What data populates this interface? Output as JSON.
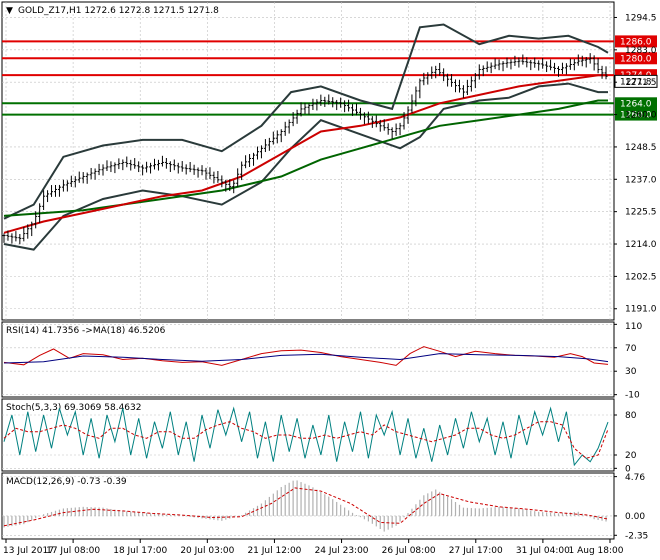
{
  "colors": {
    "resistance": "#e00000",
    "support": "#007000",
    "sma_fast": "#cc0000",
    "sma_slow": "#006400",
    "bands": "#2a3a3a",
    "candle": "#000000",
    "rsi": "#cc0000",
    "rsi_ma": "#000080",
    "stoch_main": "#008080",
    "stoch_signal": "#cc0000",
    "macd_hist": "#b0b0b0",
    "macd_signal": "#cc0000",
    "grid": "#c0c0c0"
  },
  "chart_data": [
    {
      "type": "line",
      "title": "GOLD_Z17,H1  1272.6 1272.8 1271.5 1271.8",
      "menu_arrow": "▼",
      "x_tick_labels": [
        "13 Jul 2017",
        "17 Jul 08:00",
        "18 Jul 17:00",
        "20 Jul 03:00",
        "21 Jul 12:00",
        "24 Jul 23:00",
        "26 Jul 08:00",
        "27 Jul 17:00",
        "31 Jul 04:00",
        "1 Aug 18:00"
      ],
      "y_ticks": [
        1191.0,
        1202.5,
        1214.0,
        1225.5,
        1237.0,
        1248.5,
        1260.0,
        1271.5,
        1283.0,
        1294.5
      ],
      "ylim": [
        1187,
        1300
      ],
      "current_price": 1271.8,
      "horizontal_levels": [
        {
          "value": 1286.0,
          "kind": "resistance",
          "label": "1286.0"
        },
        {
          "value": 1280.0,
          "kind": "resistance",
          "label": "1280.0"
        },
        {
          "value": 1274.0,
          "kind": "resistance",
          "label": "1274.0"
        },
        {
          "value": 1264.0,
          "kind": "support",
          "label": "1264.0"
        },
        {
          "value": 1260.0,
          "kind": "support",
          "label": "1260.0"
        }
      ],
      "close_path": [
        [
          0,
          1217
        ],
        [
          8,
          1216
        ],
        [
          15,
          1222
        ],
        [
          20,
          1231
        ],
        [
          30,
          1235
        ],
        [
          40,
          1238
        ],
        [
          50,
          1241
        ],
        [
          60,
          1243
        ],
        [
          70,
          1241
        ],
        [
          80,
          1243
        ],
        [
          90,
          1241
        ],
        [
          100,
          1240
        ],
        [
          110,
          1236
        ],
        [
          115,
          1234
        ],
        [
          120,
          1242
        ],
        [
          130,
          1248
        ],
        [
          140,
          1254
        ],
        [
          150,
          1262
        ],
        [
          160,
          1265
        ],
        [
          170,
          1264
        ],
        [
          180,
          1260
        ],
        [
          190,
          1256
        ],
        [
          196,
          1254
        ],
        [
          200,
          1256
        ],
        [
          205,
          1263
        ],
        [
          210,
          1272
        ],
        [
          218,
          1276
        ],
        [
          225,
          1272
        ],
        [
          232,
          1268
        ],
        [
          240,
          1276
        ],
        [
          250,
          1278
        ],
        [
          260,
          1279
        ],
        [
          270,
          1278
        ],
        [
          280,
          1276
        ],
        [
          290,
          1279
        ],
        [
          296,
          1280
        ],
        [
          300,
          1276
        ],
        [
          305,
          1273
        ]
      ],
      "sma_fast_path": [
        [
          0,
          1218
        ],
        [
          20,
          1222
        ],
        [
          40,
          1225
        ],
        [
          60,
          1228
        ],
        [
          80,
          1231
        ],
        [
          100,
          1233
        ],
        [
          120,
          1238
        ],
        [
          140,
          1246
        ],
        [
          160,
          1254
        ],
        [
          180,
          1256
        ],
        [
          200,
          1259
        ],
        [
          220,
          1264
        ],
        [
          240,
          1267
        ],
        [
          260,
          1270
        ],
        [
          280,
          1272
        ],
        [
          300,
          1274
        ],
        [
          305,
          1274
        ]
      ],
      "sma_slow_path": [
        [
          0,
          1224
        ],
        [
          40,
          1226
        ],
        [
          80,
          1230
        ],
        [
          110,
          1233
        ],
        [
          140,
          1238
        ],
        [
          160,
          1244
        ],
        [
          180,
          1248
        ],
        [
          200,
          1252
        ],
        [
          220,
          1256
        ],
        [
          240,
          1258
        ],
        [
          260,
          1260
        ],
        [
          280,
          1262
        ],
        [
          300,
          1265
        ],
        [
          305,
          1265
        ]
      ],
      "band_upper_path": [
        [
          0,
          1223
        ],
        [
          15,
          1228
        ],
        [
          30,
          1245
        ],
        [
          50,
          1249
        ],
        [
          70,
          1251
        ],
        [
          90,
          1251
        ],
        [
          110,
          1247
        ],
        [
          130,
          1256
        ],
        [
          145,
          1268
        ],
        [
          160,
          1270
        ],
        [
          180,
          1265
        ],
        [
          196,
          1262
        ],
        [
          210,
          1291
        ],
        [
          222,
          1292
        ],
        [
          240,
          1285
        ],
        [
          255,
          1288
        ],
        [
          270,
          1287
        ],
        [
          285,
          1288
        ],
        [
          300,
          1284
        ],
        [
          305,
          1282
        ]
      ],
      "band_lower_path": [
        [
          0,
          1214
        ],
        [
          15,
          1212
        ],
        [
          30,
          1224
        ],
        [
          50,
          1230
        ],
        [
          70,
          1233
        ],
        [
          90,
          1231
        ],
        [
          110,
          1228
        ],
        [
          130,
          1236
        ],
        [
          145,
          1248
        ],
        [
          160,
          1258
        ],
        [
          180,
          1253
        ],
        [
          200,
          1248
        ],
        [
          210,
          1252
        ],
        [
          222,
          1262
        ],
        [
          240,
          1265
        ],
        [
          255,
          1266
        ],
        [
          270,
          1270
        ],
        [
          285,
          1271
        ],
        [
          300,
          1268
        ],
        [
          305,
          1268
        ]
      ]
    },
    {
      "type": "line",
      "title": "RSI(14) 41.7356  ->MA(18) 46.5206",
      "y_ticks": [
        110,
        70,
        30,
        -10
      ],
      "ylim": [
        -14,
        114
      ],
      "rsi_path": [
        [
          0,
          45
        ],
        [
          10,
          41
        ],
        [
          18,
          57
        ],
        [
          25,
          68
        ],
        [
          33,
          52
        ],
        [
          40,
          60
        ],
        [
          50,
          58
        ],
        [
          60,
          50
        ],
        [
          70,
          52
        ],
        [
          80,
          48
        ],
        [
          90,
          45
        ],
        [
          100,
          46
        ],
        [
          110,
          40
        ],
        [
          120,
          50
        ],
        [
          130,
          60
        ],
        [
          140,
          65
        ],
        [
          150,
          66
        ],
        [
          160,
          62
        ],
        [
          170,
          55
        ],
        [
          180,
          50
        ],
        [
          190,
          45
        ],
        [
          198,
          40
        ],
        [
          205,
          60
        ],
        [
          212,
          72
        ],
        [
          220,
          64
        ],
        [
          228,
          55
        ],
        [
          238,
          64
        ],
        [
          248,
          60
        ],
        [
          258,
          57
        ],
        [
          268,
          56
        ],
        [
          278,
          54
        ],
        [
          286,
          60
        ],
        [
          292,
          55
        ],
        [
          298,
          44
        ],
        [
          305,
          41.7
        ]
      ],
      "ma_path": [
        [
          0,
          44
        ],
        [
          20,
          46
        ],
        [
          40,
          56
        ],
        [
          60,
          54
        ],
        [
          80,
          50
        ],
        [
          100,
          47
        ],
        [
          120,
          50
        ],
        [
          140,
          57
        ],
        [
          160,
          59
        ],
        [
          180,
          54
        ],
        [
          200,
          50
        ],
        [
          220,
          60
        ],
        [
          240,
          58
        ],
        [
          260,
          57
        ],
        [
          280,
          55
        ],
        [
          295,
          51
        ],
        [
          305,
          46.5
        ]
      ]
    },
    {
      "type": "line",
      "title": "Stoch(5,3,3) 69.3069 58.4632",
      "y_ticks": [
        80,
        20,
        0
      ],
      "ylim": [
        -4,
        104
      ],
      "main_path": [
        [
          0,
          40
        ],
        [
          4,
          80
        ],
        [
          8,
          20
        ],
        [
          12,
          85
        ],
        [
          16,
          25
        ],
        [
          20,
          80
        ],
        [
          24,
          30
        ],
        [
          28,
          90
        ],
        [
          32,
          50
        ],
        [
          36,
          85
        ],
        [
          40,
          20
        ],
        [
          44,
          75
        ],
        [
          48,
          15
        ],
        [
          52,
          80
        ],
        [
          56,
          40
        ],
        [
          60,
          90
        ],
        [
          64,
          20
        ],
        [
          68,
          75
        ],
        [
          72,
          15
        ],
        [
          76,
          70
        ],
        [
          80,
          30
        ],
        [
          84,
          85
        ],
        [
          88,
          20
        ],
        [
          92,
          70
        ],
        [
          96,
          10
        ],
        [
          100,
          80
        ],
        [
          104,
          30
        ],
        [
          108,
          88
        ],
        [
          112,
          50
        ],
        [
          116,
          90
        ],
        [
          120,
          40
        ],
        [
          124,
          85
        ],
        [
          128,
          15
        ],
        [
          132,
          70
        ],
        [
          136,
          10
        ],
        [
          140,
          80
        ],
        [
          144,
          25
        ],
        [
          148,
          75
        ],
        [
          152,
          15
        ],
        [
          156,
          65
        ],
        [
          160,
          20
        ],
        [
          164,
          80
        ],
        [
          168,
          10
        ],
        [
          172,
          70
        ],
        [
          176,
          25
        ],
        [
          180,
          85
        ],
        [
          184,
          15
        ],
        [
          188,
          80
        ],
        [
          192,
          50
        ],
        [
          196,
          85
        ],
        [
          200,
          20
        ],
        [
          204,
          75
        ],
        [
          208,
          15
        ],
        [
          212,
          60
        ],
        [
          216,
          10
        ],
        [
          220,
          65
        ],
        [
          224,
          20
        ],
        [
          228,
          75
        ],
        [
          232,
          30
        ],
        [
          236,
          85
        ],
        [
          240,
          40
        ],
        [
          244,
          75
        ],
        [
          248,
          20
        ],
        [
          252,
          70
        ],
        [
          256,
          15
        ],
        [
          260,
          80
        ],
        [
          264,
          35
        ],
        [
          268,
          85
        ],
        [
          272,
          50
        ],
        [
          276,
          90
        ],
        [
          280,
          40
        ],
        [
          284,
          85
        ],
        [
          288,
          5
        ],
        [
          292,
          20
        ],
        [
          296,
          10
        ],
        [
          300,
          30
        ],
        [
          305,
          69.3
        ]
      ],
      "signal_path": [
        [
          0,
          45
        ],
        [
          6,
          60
        ],
        [
          12,
          55
        ],
        [
          18,
          55
        ],
        [
          24,
          60
        ],
        [
          30,
          65
        ],
        [
          36,
          60
        ],
        [
          42,
          50
        ],
        [
          48,
          45
        ],
        [
          54,
          60
        ],
        [
          60,
          60
        ],
        [
          66,
          50
        ],
        [
          72,
          45
        ],
        [
          78,
          55
        ],
        [
          84,
          55
        ],
        [
          90,
          45
        ],
        [
          96,
          45
        ],
        [
          102,
          58
        ],
        [
          108,
          65
        ],
        [
          114,
          70
        ],
        [
          120,
          60
        ],
        [
          126,
          55
        ],
        [
          132,
          45
        ],
        [
          138,
          50
        ],
        [
          144,
          50
        ],
        [
          150,
          45
        ],
        [
          156,
          45
        ],
        [
          162,
          50
        ],
        [
          168,
          45
        ],
        [
          174,
          50
        ],
        [
          180,
          55
        ],
        [
          186,
          50
        ],
        [
          192,
          65
        ],
        [
          198,
          55
        ],
        [
          204,
          50
        ],
        [
          210,
          45
        ],
        [
          216,
          40
        ],
        [
          222,
          45
        ],
        [
          228,
          50
        ],
        [
          234,
          60
        ],
        [
          240,
          60
        ],
        [
          246,
          50
        ],
        [
          252,
          45
        ],
        [
          258,
          50
        ],
        [
          264,
          60
        ],
        [
          270,
          70
        ],
        [
          276,
          70
        ],
        [
          282,
          65
        ],
        [
          288,
          30
        ],
        [
          294,
          15
        ],
        [
          300,
          20
        ],
        [
          305,
          58.5
        ]
      ]
    },
    {
      "type": "bar",
      "title": "MACD(12,26,9) -0.73 -0.39",
      "y_ticks": [
        4.76,
        0.0,
        -2.35
      ],
      "ylim": [
        -2.8,
        5.2
      ],
      "hist_path": [
        [
          0,
          -1.4
        ],
        [
          10,
          -1.0
        ],
        [
          20,
          0.2
        ],
        [
          30,
          0.9
        ],
        [
          40,
          1.1
        ],
        [
          50,
          1.0
        ],
        [
          60,
          0.6
        ],
        [
          70,
          0.4
        ],
        [
          80,
          0.2
        ],
        [
          90,
          0.0
        ],
        [
          100,
          -0.3
        ],
        [
          110,
          -0.6
        ],
        [
          120,
          0.1
        ],
        [
          130,
          1.5
        ],
        [
          140,
          3.5
        ],
        [
          147,
          4.4
        ],
        [
          155,
          3.6
        ],
        [
          165,
          2.2
        ],
        [
          175,
          0.5
        ],
        [
          185,
          -0.8
        ],
        [
          192,
          -1.9
        ],
        [
          198,
          -1.2
        ],
        [
          205,
          0.6
        ],
        [
          212,
          2.5
        ],
        [
          218,
          3.2
        ],
        [
          225,
          2.2
        ],
        [
          232,
          1.0
        ],
        [
          240,
          0.9
        ],
        [
          250,
          1.1
        ],
        [
          260,
          0.9
        ],
        [
          270,
          0.5
        ],
        [
          280,
          0.3
        ],
        [
          290,
          0.5
        ],
        [
          298,
          -0.4
        ],
        [
          305,
          -0.73
        ]
      ],
      "signal_path": [
        [
          0,
          -1.2
        ],
        [
          15,
          -0.5
        ],
        [
          30,
          0.4
        ],
        [
          45,
          0.8
        ],
        [
          60,
          0.6
        ],
        [
          75,
          0.3
        ],
        [
          90,
          0.1
        ],
        [
          105,
          -0.2
        ],
        [
          120,
          -0.1
        ],
        [
          135,
          1.5
        ],
        [
          147,
          3.4
        ],
        [
          160,
          3.0
        ],
        [
          175,
          1.5
        ],
        [
          190,
          -0.8
        ],
        [
          200,
          -0.9
        ],
        [
          212,
          1.5
        ],
        [
          220,
          2.7
        ],
        [
          235,
          1.7
        ],
        [
          250,
          1.1
        ],
        [
          265,
          0.8
        ],
        [
          280,
          0.4
        ],
        [
          295,
          0.1
        ],
        [
          305,
          -0.39
        ]
      ]
    }
  ]
}
